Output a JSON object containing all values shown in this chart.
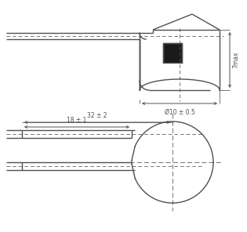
{
  "bg_color": "#ffffff",
  "line_color": "#505050",
  "lw": 1.0,
  "tlw": 0.55,
  "top_label_phi": "Ø10 ± 0.5",
  "top_label_h": "7max",
  "bot_label_32": "32 ± 2",
  "bot_label_18": "18 ± 1",
  "font_size": 5.5
}
